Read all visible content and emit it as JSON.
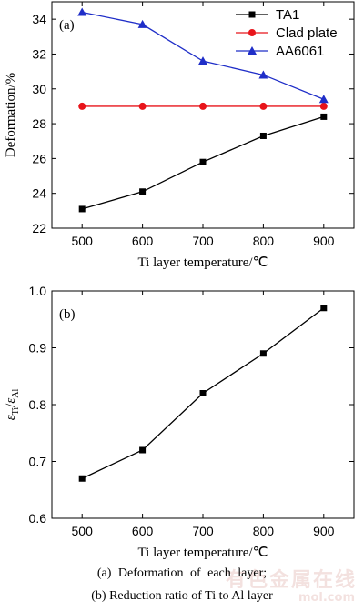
{
  "chart_data": [
    {
      "type": "line",
      "panel_label": "(a)",
      "x": [
        500,
        600,
        700,
        800,
        900
      ],
      "series": [
        {
          "name": "TA1",
          "values": [
            23.1,
            24.1,
            25.8,
            27.3,
            28.4
          ],
          "color": "#000000",
          "marker": "square"
        },
        {
          "name": "Clad plate",
          "values": [
            29.0,
            29.0,
            29.0,
            29.0,
            29.0
          ],
          "color": "#e8141a",
          "marker": "circle"
        },
        {
          "name": "AA6061",
          "values": [
            34.4,
            33.7,
            31.6,
            30.8,
            29.4
          ],
          "color": "#1f2ec8",
          "marker": "triangle"
        }
      ],
      "xlabel": "Ti layer temperature/℃",
      "ylabel": "Deformation/%",
      "xlim": [
        450,
        950
      ],
      "ylim": [
        22,
        35
      ],
      "xticks": [
        500,
        600,
        700,
        800,
        900
      ],
      "yticks": [
        22,
        24,
        26,
        28,
        30,
        32,
        34
      ],
      "grid": false,
      "legend": "top-right"
    },
    {
      "type": "line",
      "panel_label": "(b)",
      "x": [
        500,
        600,
        700,
        800,
        900
      ],
      "series": [
        {
          "values": [
            0.67,
            0.72,
            0.82,
            0.89,
            0.97
          ],
          "color": "#000000",
          "marker": "square"
        }
      ],
      "xlabel": "Ti layer temperature/℃",
      "ylabel_main": "ε",
      "ylabel_num_sub": "Ti",
      "ylabel_sep": "/",
      "ylabel_den_sub": "Al",
      "xlim": [
        450,
        950
      ],
      "ylim": [
        0.6,
        1.0
      ],
      "xticks": [
        500,
        600,
        700,
        800,
        900
      ],
      "yticks": [
        0.6,
        0.7,
        0.8,
        0.9,
        1.0
      ],
      "ytick_labels": [
        "0.6",
        "0.7",
        "0.8",
        "0.9",
        "1.0"
      ],
      "grid": false
    }
  ],
  "captions": {
    "a": "(a)  Deformation  of  each  layer;",
    "b": "(b) Reduction ratio of Ti to Al layer"
  },
  "watermark": {
    "main": "有色金属在线",
    "sub": "mol.com"
  }
}
